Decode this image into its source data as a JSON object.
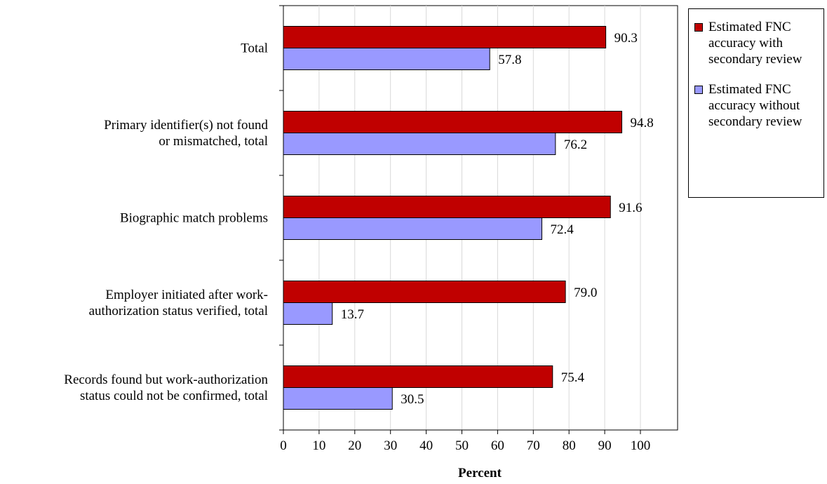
{
  "chart_data": {
    "type": "bar",
    "orientation": "horizontal",
    "categories": [
      "Total",
      "Primary identifier(s) not found\nor mismatched, total",
      "Biographic match problems",
      "Employer initiated after work-\nauthorization status verified, total",
      "Records found but work-authorization\nstatus could not be confirmed, total"
    ],
    "series": [
      {
        "name": "Estimated FNC accuracy with secondary review",
        "color": "#c00000",
        "values": [
          90.3,
          94.8,
          91.6,
          79.0,
          75.4
        ],
        "labels": [
          "90.3",
          "94.8",
          "91.6",
          "79.0",
          "75.4"
        ]
      },
      {
        "name": "Estimated FNC accuracy without secondary review",
        "color": "#9999ff",
        "values": [
          57.8,
          76.2,
          72.4,
          13.7,
          30.5
        ],
        "labels": [
          "57.8",
          "76.2",
          "72.4",
          "13.7",
          "30.5"
        ]
      }
    ],
    "xlabel": "Percent",
    "xlim": [
      0,
      100
    ],
    "xticks": [
      0,
      10,
      20,
      30,
      40,
      50,
      60,
      70,
      80,
      90,
      100
    ],
    "grid": true,
    "legend": "right"
  }
}
